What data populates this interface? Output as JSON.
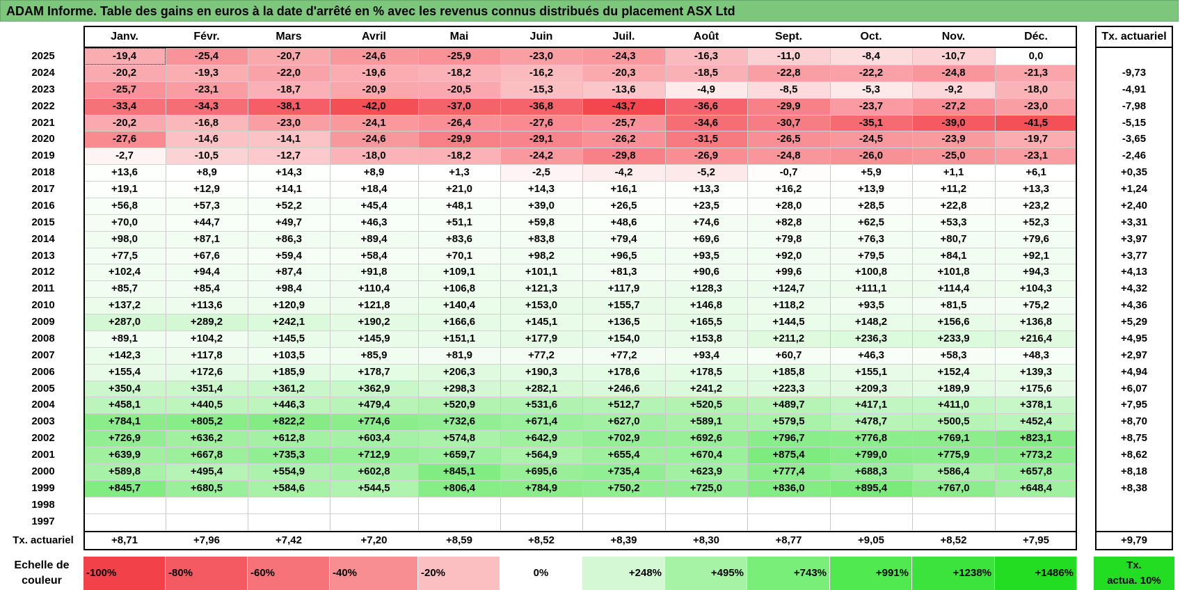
{
  "title": "ADAM Informe. Table des gains en euros à la date d'arrêté en % avec les revenus connus distribués du placement ASX Ltd",
  "chart_data": {
    "type": "heatmap",
    "columns": [
      "Janv.",
      "Févr.",
      "Mars",
      "Avril",
      "Mai",
      "Juin",
      "Juil.",
      "Août",
      "Sept.",
      "Oct.",
      "Nov.",
      "Déc."
    ],
    "right_header": "Tx. actuariel",
    "rows": [
      {
        "year": "2025",
        "values": [
          "-19,4",
          "-25,4",
          "-20,7",
          "-24,6",
          "-25,9",
          "-23,0",
          "-24,3",
          "-16,3",
          "-11,0",
          "-8,4",
          "-10,7",
          "0,0"
        ],
        "rate": ""
      },
      {
        "year": "2024",
        "values": [
          "-20,2",
          "-19,3",
          "-22,0",
          "-19,6",
          "-18,2",
          "-16,2",
          "-20,3",
          "-18,5",
          "-22,8",
          "-22,2",
          "-24,8",
          "-21,3"
        ],
        "rate": "-9,73"
      },
      {
        "year": "2023",
        "values": [
          "-25,7",
          "-23,1",
          "-18,7",
          "-20,9",
          "-20,5",
          "-15,3",
          "-13,6",
          "-4,9",
          "-8,5",
          "-5,3",
          "-9,2",
          "-18,0"
        ],
        "rate": "-4,91"
      },
      {
        "year": "2022",
        "values": [
          "-33,4",
          "-34,3",
          "-38,1",
          "-42,0",
          "-37,0",
          "-36,8",
          "-43,7",
          "-36,6",
          "-29,9",
          "-23,7",
          "-27,2",
          "-23,0"
        ],
        "rate": "-7,98"
      },
      {
        "year": "2021",
        "values": [
          "-20,2",
          "-16,8",
          "-23,0",
          "-24,1",
          "-26,4",
          "-27,6",
          "-25,7",
          "-34,6",
          "-30,7",
          "-35,1",
          "-39,0",
          "-41,5"
        ],
        "rate": "-5,15"
      },
      {
        "year": "2020",
        "values": [
          "-27,6",
          "-14,6",
          "-14,1",
          "-24,6",
          "-29,9",
          "-29,1",
          "-26,2",
          "-31,5",
          "-26,5",
          "-24,5",
          "-23,9",
          "-19,7"
        ],
        "rate": "-3,65"
      },
      {
        "year": "2019",
        "values": [
          "-2,7",
          "-10,5",
          "-12,7",
          "-18,0",
          "-18,2",
          "-24,2",
          "-29,8",
          "-26,9",
          "-24,8",
          "-26,0",
          "-25,0",
          "-23,1"
        ],
        "rate": "-2,46"
      },
      {
        "year": "2018",
        "values": [
          "+13,6",
          "+8,9",
          "+14,3",
          "+8,9",
          "+1,3",
          "-2,5",
          "-4,2",
          "-5,2",
          "-0,7",
          "+5,9",
          "+1,1",
          "+6,1"
        ],
        "rate": "+0,35"
      },
      {
        "year": "2017",
        "values": [
          "+19,1",
          "+12,9",
          "+14,1",
          "+18,4",
          "+21,0",
          "+14,3",
          "+16,1",
          "+13,3",
          "+16,2",
          "+13,9",
          "+11,2",
          "+13,3"
        ],
        "rate": "+1,24"
      },
      {
        "year": "2016",
        "values": [
          "+56,8",
          "+57,3",
          "+52,2",
          "+45,4",
          "+48,1",
          "+39,0",
          "+26,5",
          "+23,5",
          "+28,0",
          "+28,5",
          "+22,8",
          "+23,2"
        ],
        "rate": "+2,40"
      },
      {
        "year": "2015",
        "values": [
          "+70,0",
          "+44,7",
          "+49,7",
          "+46,3",
          "+51,1",
          "+59,8",
          "+48,6",
          "+74,6",
          "+82,8",
          "+62,5",
          "+53,3",
          "+52,3"
        ],
        "rate": "+3,31"
      },
      {
        "year": "2014",
        "values": [
          "+98,0",
          "+87,1",
          "+86,3",
          "+89,4",
          "+83,6",
          "+83,8",
          "+79,4",
          "+69,6",
          "+79,8",
          "+76,3",
          "+80,7",
          "+79,6"
        ],
        "rate": "+3,97"
      },
      {
        "year": "2013",
        "values": [
          "+77,5",
          "+67,6",
          "+59,4",
          "+58,4",
          "+70,1",
          "+98,2",
          "+96,5",
          "+93,5",
          "+92,0",
          "+79,5",
          "+84,1",
          "+92,1"
        ],
        "rate": "+3,77"
      },
      {
        "year": "2012",
        "values": [
          "+102,4",
          "+94,4",
          "+87,4",
          "+91,8",
          "+109,1",
          "+101,1",
          "+81,3",
          "+90,6",
          "+99,6",
          "+100,8",
          "+101,8",
          "+94,3"
        ],
        "rate": "+4,13"
      },
      {
        "year": "2011",
        "values": [
          "+85,7",
          "+85,4",
          "+98,4",
          "+110,4",
          "+106,8",
          "+121,3",
          "+117,9",
          "+128,3",
          "+124,7",
          "+111,1",
          "+114,4",
          "+104,3"
        ],
        "rate": "+4,32"
      },
      {
        "year": "2010",
        "values": [
          "+137,2",
          "+113,6",
          "+120,9",
          "+121,8",
          "+140,4",
          "+153,0",
          "+155,7",
          "+146,8",
          "+118,2",
          "+93,5",
          "+81,5",
          "+75,2"
        ],
        "rate": "+4,36"
      },
      {
        "year": "2009",
        "values": [
          "+287,0",
          "+289,2",
          "+242,1",
          "+190,2",
          "+166,6",
          "+145,1",
          "+136,5",
          "+165,5",
          "+144,5",
          "+148,2",
          "+156,6",
          "+136,8"
        ],
        "rate": "+5,29"
      },
      {
        "year": "2008",
        "values": [
          "+89,1",
          "+104,2",
          "+145,5",
          "+145,9",
          "+151,1",
          "+177,9",
          "+154,0",
          "+153,8",
          "+211,2",
          "+236,3",
          "+233,9",
          "+216,4"
        ],
        "rate": "+4,95"
      },
      {
        "year": "2007",
        "values": [
          "+142,3",
          "+117,8",
          "+103,5",
          "+85,9",
          "+81,9",
          "+77,2",
          "+77,2",
          "+93,4",
          "+60,7",
          "+46,3",
          "+58,3",
          "+48,3"
        ],
        "rate": "+2,97"
      },
      {
        "year": "2006",
        "values": [
          "+155,4",
          "+172,6",
          "+185,9",
          "+178,7",
          "+206,3",
          "+190,3",
          "+178,6",
          "+178,5",
          "+185,8",
          "+155,1",
          "+152,4",
          "+139,3"
        ],
        "rate": "+4,94"
      },
      {
        "year": "2005",
        "values": [
          "+350,4",
          "+351,4",
          "+361,2",
          "+362,9",
          "+298,3",
          "+282,1",
          "+246,6",
          "+241,2",
          "+223,3",
          "+209,3",
          "+189,9",
          "+175,6"
        ],
        "rate": "+6,07"
      },
      {
        "year": "2004",
        "values": [
          "+458,1",
          "+440,5",
          "+446,3",
          "+479,4",
          "+520,9",
          "+531,6",
          "+512,7",
          "+520,5",
          "+489,7",
          "+417,1",
          "+411,0",
          "+378,1"
        ],
        "rate": "+7,95"
      },
      {
        "year": "2003",
        "values": [
          "+784,1",
          "+805,2",
          "+822,2",
          "+774,6",
          "+732,6",
          "+671,4",
          "+627,0",
          "+589,1",
          "+579,5",
          "+478,7",
          "+500,5",
          "+452,4"
        ],
        "rate": "+8,70"
      },
      {
        "year": "2002",
        "values": [
          "+726,9",
          "+636,2",
          "+612,8",
          "+603,4",
          "+574,8",
          "+642,9",
          "+702,9",
          "+692,6",
          "+796,7",
          "+776,8",
          "+769,1",
          "+823,1"
        ],
        "rate": "+8,75"
      },
      {
        "year": "2001",
        "values": [
          "+639,9",
          "+667,8",
          "+735,3",
          "+712,9",
          "+659,7",
          "+564,9",
          "+655,4",
          "+670,4",
          "+875,4",
          "+799,0",
          "+775,9",
          "+773,2"
        ],
        "rate": "+8,62"
      },
      {
        "year": "2000",
        "values": [
          "+589,8",
          "+495,4",
          "+554,9",
          "+602,8",
          "+845,1",
          "+695,6",
          "+735,4",
          "+623,9",
          "+777,4",
          "+688,3",
          "+586,4",
          "+657,8"
        ],
        "rate": "+8,18"
      },
      {
        "year": "1999",
        "values": [
          "+845,7",
          "+680,5",
          "+584,6",
          "+544,5",
          "+806,4",
          "+784,9",
          "+750,2",
          "+725,0",
          "+836,0",
          "+895,4",
          "+767,0",
          "+648,4"
        ],
        "rate": "+8,38"
      },
      {
        "year": "1998",
        "values": [
          "",
          "",
          "",
          "",
          "",
          "",
          "",
          "",
          "",
          "",
          "",
          ""
        ],
        "rate": ""
      },
      {
        "year": "1997",
        "values": [
          "",
          "",
          "",
          "",
          "",
          "",
          "",
          "",
          "",
          "",
          "",
          ""
        ],
        "rate": ""
      }
    ],
    "footer": {
      "label": "Tx. actuariel",
      "values": [
        "+8,71",
        "+7,96",
        "+7,42",
        "+7,20",
        "+8,59",
        "+8,52",
        "+8,39",
        "+8,30",
        "+8,77",
        "+9,05",
        "+8,52",
        "+7,95"
      ],
      "rate": "+9,79"
    },
    "scale": {
      "label_line1": "Echelle de",
      "label_line2": "couleur",
      "stops": [
        {
          "label": "-100%",
          "color": "#f3414a"
        },
        {
          "label": "-80%",
          "color": "#f45a61"
        },
        {
          "label": "-60%",
          "color": "#f67479"
        },
        {
          "label": "-40%",
          "color": "#f88e91"
        },
        {
          "label": "-20%",
          "color": "#fbbfc1"
        },
        {
          "label": "0%",
          "color": "#ffffff"
        },
        {
          "label": "+248%",
          "color": "#d3f8d3"
        },
        {
          "label": "+495%",
          "color": "#a6f3a6"
        },
        {
          "label": "+743%",
          "color": "#79ee79"
        },
        {
          "label": "+991%",
          "color": "#50e950"
        },
        {
          "label": "+1238%",
          "color": "#3de33d"
        },
        {
          "label": "+1486%",
          "color": "#22dd22"
        }
      ],
      "ref_label_line1": "Tx.",
      "ref_label_line2": "actua. 10%",
      "ref_color": "#22dd22"
    }
  }
}
